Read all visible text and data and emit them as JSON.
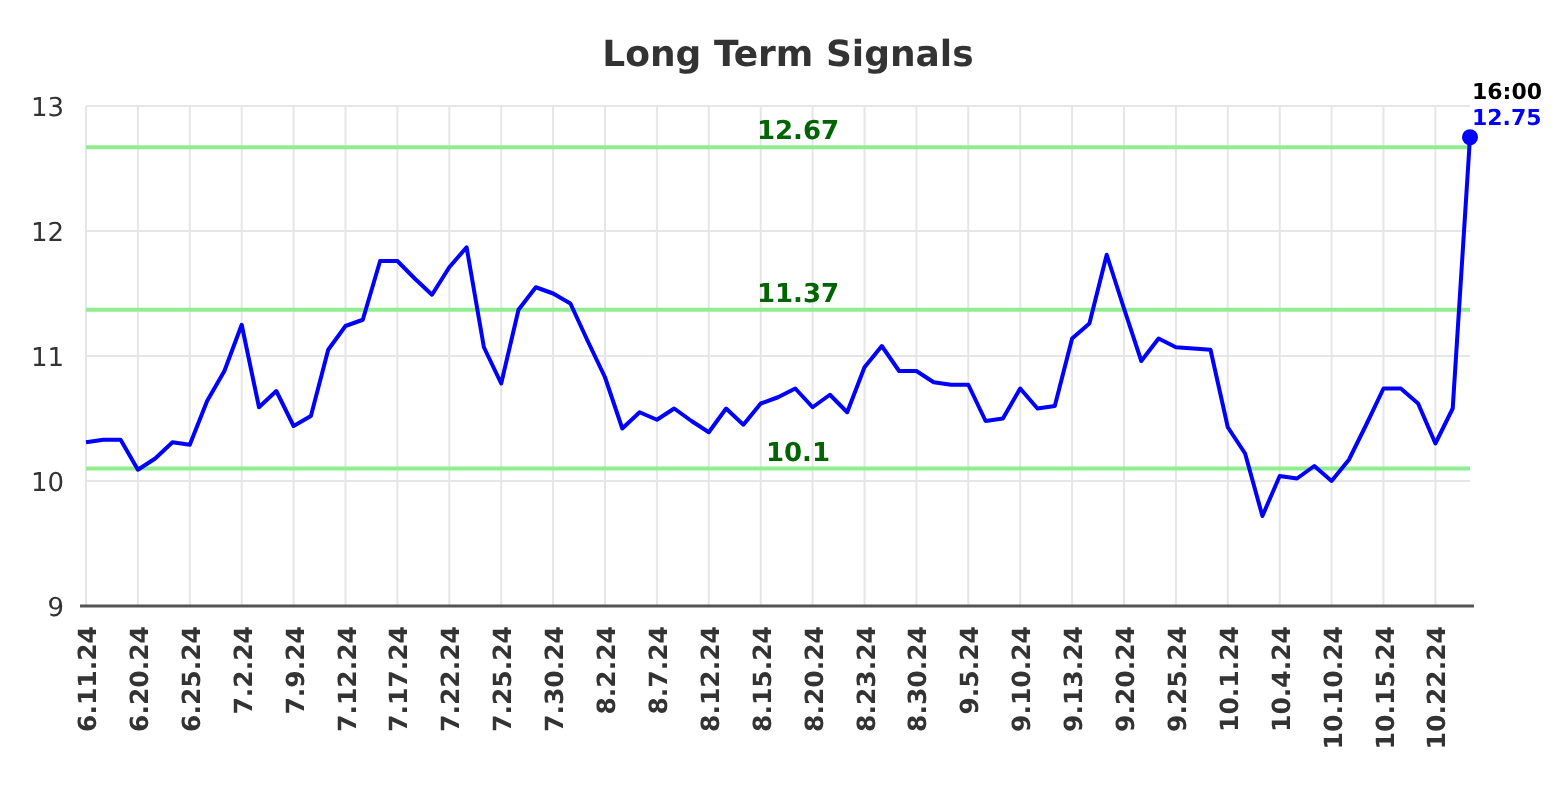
{
  "chart_data": {
    "type": "line",
    "title": "Long Term Signals",
    "categories": [
      "6.11.24",
      null,
      null,
      "6.20.24",
      null,
      null,
      "6.25.24",
      null,
      null,
      "7.2.24",
      null,
      null,
      "7.9.24",
      null,
      null,
      "7.12.24",
      null,
      null,
      "7.17.24",
      null,
      null,
      "7.22.24",
      null,
      null,
      "7.25.24",
      null,
      null,
      "7.30.24",
      null,
      null,
      "8.2.24",
      null,
      null,
      "8.7.24",
      null,
      null,
      "8.12.24",
      null,
      null,
      "8.15.24",
      null,
      null,
      "8.20.24",
      null,
      null,
      "8.23.24",
      null,
      null,
      "8.30.24",
      null,
      null,
      "9.5.24",
      null,
      null,
      "9.10.24",
      null,
      null,
      "9.13.24",
      null,
      null,
      "9.20.24",
      null,
      null,
      "9.25.24",
      null,
      null,
      "10.1.24",
      null,
      null,
      "10.4.24",
      null,
      null,
      "10.10.24",
      null,
      null,
      "10.15.24",
      null,
      null,
      "10.22.24",
      null,
      null
    ],
    "series": [
      {
        "color": "#0000ff",
        "values": [
          10.31,
          10.33,
          10.33,
          10.09,
          10.18,
          10.31,
          10.29,
          10.64,
          10.88,
          11.25,
          10.59,
          10.72,
          10.44,
          10.52,
          11.05,
          11.24,
          11.29,
          11.76,
          11.76,
          11.62,
          11.49,
          11.71,
          11.87,
          11.07,
          10.78,
          11.37,
          11.55,
          11.5,
          11.42,
          11.12,
          10.83,
          10.42,
          10.55,
          10.49,
          10.58,
          10.48,
          10.39,
          10.58,
          10.45,
          10.62,
          10.67,
          10.74,
          10.59,
          10.69,
          10.55,
          10.91,
          11.08,
          10.88,
          10.88,
          10.79,
          10.77,
          10.77,
          10.48,
          10.5,
          10.74,
          10.58,
          10.6,
          11.14,
          11.26,
          11.81,
          11.38,
          10.96,
          11.14,
          11.07,
          11.06,
          11.05,
          10.43,
          10.22,
          9.72,
          10.04,
          10.02,
          10.12,
          10.0,
          10.17,
          10.45,
          10.74,
          10.74,
          10.62,
          10.3,
          10.58,
          12.75
        ],
        "value_labels": [
          null,
          null,
          null,
          null,
          null,
          null,
          null,
          null,
          null,
          null,
          null,
          null,
          null,
          null,
          null,
          null,
          null,
          null,
          null,
          null,
          null,
          null,
          null,
          null,
          null,
          null,
          null,
          null,
          null,
          null,
          null,
          null,
          null,
          null,
          null,
          null,
          null,
          null,
          null,
          null,
          null,
          null,
          null,
          null,
          null,
          null,
          null,
          null,
          null,
          null,
          null,
          null,
          null,
          null,
          null,
          null,
          null,
          null,
          null,
          null,
          null,
          null,
          null,
          null,
          null,
          null,
          null,
          null,
          null,
          null,
          null,
          null,
          null,
          null,
          null,
          null,
          null,
          null,
          null,
          null,
          "12.75"
        ]
      }
    ],
    "ylim": [
      9,
      13
    ],
    "yticks": [
      9,
      10,
      11,
      12,
      13
    ],
    "grid": true,
    "marker": "none",
    "line_style": "solid",
    "ref_lines": [
      {
        "axis": "y",
        "value": 12.67,
        "label": "12.67",
        "color": "#90ee90"
      },
      {
        "axis": "y",
        "value": 11.37,
        "label": "11.37",
        "color": "#90ee90"
      },
      {
        "axis": "y",
        "value": 10.1,
        "label": "10.1",
        "color": "#90ee90"
      }
    ],
    "annotations": [
      "16:00"
    ]
  }
}
